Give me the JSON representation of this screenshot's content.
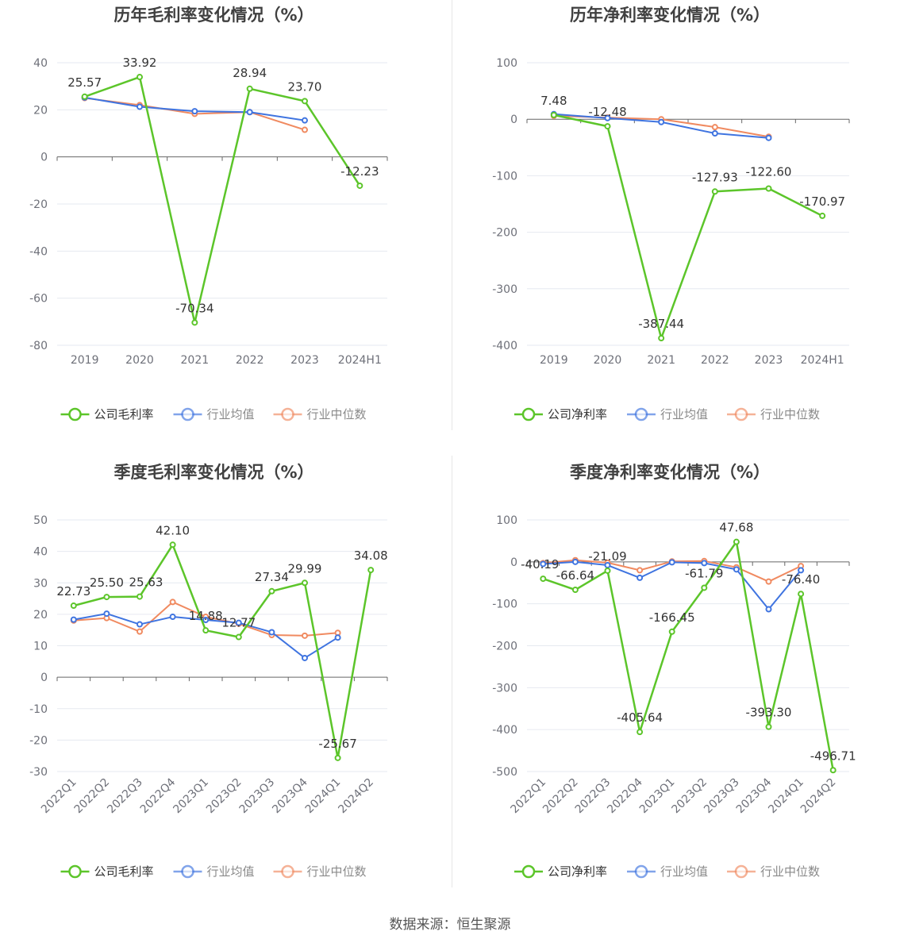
{
  "colors": {
    "company": "#5cc52a",
    "industry_avg": "#3f74e0",
    "industry_median": "#f08a60",
    "grid": "#e6e9f0",
    "axis": "#666666",
    "tick_text": "#6e7079",
    "title_text": "#404040",
    "label_text": "#333333"
  },
  "source": "数据来源：恒生聚源",
  "chart_data": [
    {
      "type": "line",
      "title": "历年毛利率变化情况（%）",
      "categories": [
        "2019",
        "2020",
        "2021",
        "2022",
        "2023",
        "2024H1"
      ],
      "ylim": [
        -80,
        40
      ],
      "yticks": [
        40,
        20,
        0,
        -20,
        -40,
        -60,
        -80
      ],
      "rotate_x": false,
      "grid": true,
      "legend_position": "bottom",
      "series": [
        {
          "key": "company",
          "name": "公司毛利率",
          "values": [
            25.57,
            33.92,
            -70.34,
            28.94,
            23.7,
            -12.23
          ],
          "labels": [
            "25.57",
            "33.92",
            "-70.34",
            "28.94",
            "23.70",
            "-12.23"
          ]
        },
        {
          "key": "industry_avg",
          "name": "行业均值",
          "values": [
            25.2,
            21.3,
            19.4,
            19.0,
            15.5,
            null
          ]
        },
        {
          "key": "industry_median",
          "name": "行业中位数",
          "values": [
            25.0,
            22.0,
            18.3,
            19.0,
            11.5,
            null
          ]
        }
      ]
    },
    {
      "type": "line",
      "title": "历年净利率变化情况（%）",
      "categories": [
        "2019",
        "2020",
        "2021",
        "2022",
        "2023",
        "2024H1"
      ],
      "ylim": [
        -400,
        100
      ],
      "yticks": [
        100,
        0,
        -100,
        -200,
        -300,
        -400
      ],
      "rotate_x": false,
      "grid": true,
      "legend_position": "bottom",
      "series": [
        {
          "key": "company",
          "name": "公司净利率",
          "values": [
            7.48,
            -12.48,
            -387.44,
            -127.93,
            -122.6,
            -170.97
          ],
          "labels": [
            "7.48",
            "-12.48",
            "-387.44",
            "-127.93",
            "-122.60",
            "-170.97"
          ]
        },
        {
          "key": "industry_avg",
          "name": "行业均值",
          "values": [
            9,
            2,
            -5,
            -25,
            -33,
            null
          ]
        },
        {
          "key": "industry_median",
          "name": "行业中位数",
          "values": [
            6,
            3,
            0,
            -14,
            -31,
            null
          ]
        }
      ]
    },
    {
      "type": "line",
      "title": "季度毛利率变化情况（%）",
      "categories": [
        "2022Q1",
        "2022Q2",
        "2022Q3",
        "2022Q4",
        "2023Q1",
        "2023Q2",
        "2023Q3",
        "2023Q4",
        "2024Q1",
        "2024Q2"
      ],
      "ylim": [
        -30,
        50
      ],
      "yticks": [
        50,
        40,
        30,
        20,
        10,
        0,
        -10,
        -20,
        -30
      ],
      "rotate_x": true,
      "grid": true,
      "legend_position": "bottom",
      "series": [
        {
          "key": "company",
          "name": "公司毛利率",
          "values": [
            22.73,
            25.5,
            25.63,
            42.1,
            14.88,
            12.77,
            27.34,
            29.99,
            -25.67,
            34.08
          ],
          "labels": [
            "22.73",
            "25.50",
            "25.63",
            "42.10",
            "14.88",
            "12.77",
            "27.34",
            "29.99",
            "-25.67",
            "34.08"
          ]
        },
        {
          "key": "industry_avg",
          "name": "行业均值",
          "values": [
            18.3,
            20.2,
            16.8,
            19.2,
            18.2,
            17.3,
            14.3,
            6.1,
            12.6,
            null
          ]
        },
        {
          "key": "industry_median",
          "name": "行业中位数",
          "values": [
            18.0,
            18.8,
            14.5,
            23.9,
            19.2,
            17.0,
            13.4,
            13.2,
            14.1,
            null
          ]
        }
      ]
    },
    {
      "type": "line",
      "title": "季度净利率变化情况（%）",
      "categories": [
        "2022Q1",
        "2022Q2",
        "2022Q3",
        "2022Q4",
        "2023Q1",
        "2023Q2",
        "2023Q3",
        "2023Q4",
        "2024Q1",
        "2024Q2"
      ],
      "ylim": [
        -500,
        100
      ],
      "yticks": [
        100,
        0,
        -100,
        -200,
        -300,
        -400,
        -500
      ],
      "rotate_x": true,
      "grid": true,
      "legend_position": "bottom",
      "series": [
        {
          "key": "company",
          "name": "公司净利率",
          "values": [
            -40.19,
            -66.64,
            -21.09,
            -405.64,
            -166.45,
            -61.79,
            47.68,
            -393.3,
            -76.4,
            -496.71
          ],
          "labels": [
            "-40.19",
            "-66.64",
            "-21.09",
            "-405.64",
            "-166.45",
            "-61.79",
            "47.68",
            "-393.30",
            "-76.40",
            "-496.71"
          ]
        },
        {
          "key": "industry_avg",
          "name": "行业均值",
          "values": [
            -5,
            0,
            -8,
            -38,
            -1,
            -3,
            -18,
            -113,
            -20,
            null
          ]
        },
        {
          "key": "industry_median",
          "name": "行业中位数",
          "values": [
            -3,
            4,
            -2,
            -20,
            1,
            2,
            -13,
            -47,
            -10,
            null
          ]
        }
      ]
    }
  ]
}
